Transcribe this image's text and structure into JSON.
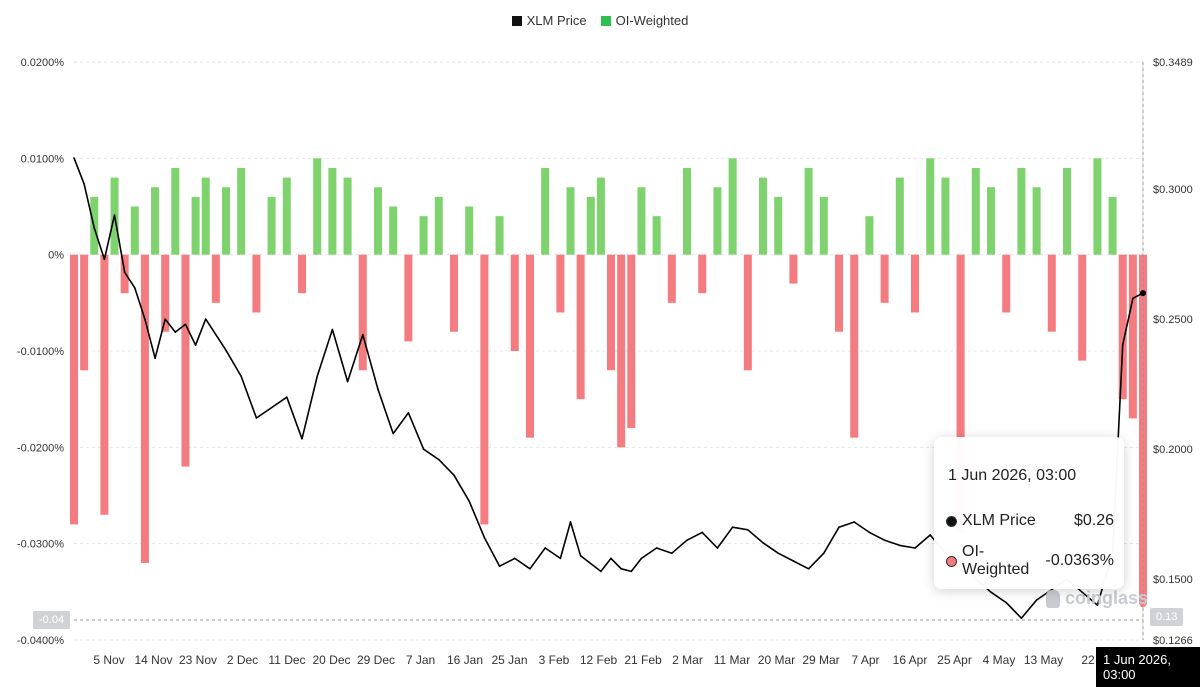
{
  "legend": [
    {
      "label": "XLM Price",
      "color": "#111111"
    },
    {
      "label": "OI-Weighted",
      "color": "#2fbf4f"
    }
  ],
  "colors": {
    "positive": "#7fd36f",
    "negative": "#f47c80",
    "price": "#000000",
    "grid": "#e6e6e6"
  },
  "chart_data": {
    "type": "bar",
    "left_axis": {
      "label": "OI-Weighted",
      "range": [
        -0.04,
        0.02
      ],
      "ticks": [
        {
          "v": 0.02,
          "t": "0.0200%"
        },
        {
          "v": 0.01,
          "t": "0.0100%"
        },
        {
          "v": 0,
          "t": "0%"
        },
        {
          "v": -0.01,
          "t": "-0.0100%"
        },
        {
          "v": -0.02,
          "t": "-0.0200%"
        },
        {
          "v": -0.03,
          "t": "-0.0300%"
        },
        {
          "v": -0.04,
          "t": "-0.0400%"
        }
      ]
    },
    "right_axis": {
      "label": "XLM Price",
      "range": [
        0.1266,
        0.3489
      ],
      "ticks": [
        {
          "v": 0.3489,
          "t": "$0.3489"
        },
        {
          "v": 0.3,
          "t": "$0.3000"
        },
        {
          "v": 0.25,
          "t": "$0.2500"
        },
        {
          "v": 0.2,
          "t": "$0.2000"
        },
        {
          "v": 0.15,
          "t": "$0.1500"
        },
        {
          "v": 0.1266,
          "t": "$0.1266"
        }
      ]
    },
    "x_ticks": [
      "5 Nov",
      "14 Nov",
      "23 Nov",
      "2 Dec",
      "11 Dec",
      "20 Dec",
      "29 Dec",
      "7 Jan",
      "16 Jan",
      "25 Jan",
      "3 Feb",
      "12 Feb",
      "21 Feb",
      "2 Mar",
      "11 Mar",
      "20 Mar",
      "29 Mar",
      "7 Apr",
      "16 Apr",
      "25 Apr",
      "4 May",
      "13 May",
      "22"
    ],
    "x_range_days": [
      0,
      211
    ],
    "price_series": {
      "name": "XLM Price",
      "days": [
        0,
        2,
        4,
        6,
        8,
        10,
        12,
        14,
        16,
        18,
        20,
        22,
        24,
        26,
        28,
        30,
        33,
        36,
        39,
        42,
        45,
        48,
        51,
        54,
        57,
        60,
        63,
        66,
        69,
        72,
        75,
        78,
        81,
        84,
        87,
        90,
        93,
        96,
        98,
        100,
        102,
        104,
        106,
        108,
        110,
        112,
        115,
        118,
        121,
        124,
        127,
        130,
        133,
        136,
        139,
        142,
        145,
        148,
        151,
        154,
        157,
        160,
        163,
        166,
        169,
        172,
        175,
        178,
        181,
        184,
        187,
        190,
        193,
        196,
        199,
        202,
        205,
        207,
        209,
        211
      ],
      "values": [
        0.312,
        0.302,
        0.285,
        0.273,
        0.29,
        0.268,
        0.262,
        0.25,
        0.235,
        0.25,
        0.245,
        0.248,
        0.24,
        0.25,
        0.244,
        0.238,
        0.228,
        0.212,
        0.216,
        0.22,
        0.204,
        0.228,
        0.246,
        0.226,
        0.244,
        0.223,
        0.206,
        0.214,
        0.2,
        0.196,
        0.19,
        0.18,
        0.166,
        0.155,
        0.158,
        0.154,
        0.162,
        0.158,
        0.172,
        0.159,
        0.156,
        0.153,
        0.158,
        0.154,
        0.153,
        0.158,
        0.162,
        0.16,
        0.165,
        0.168,
        0.162,
        0.17,
        0.169,
        0.164,
        0.16,
        0.157,
        0.154,
        0.16,
        0.17,
        0.172,
        0.168,
        0.165,
        0.163,
        0.162,
        0.167,
        0.16,
        0.158,
        0.15,
        0.145,
        0.141,
        0.135,
        0.142,
        0.146,
        0.15,
        0.145,
        0.14,
        0.16,
        0.24,
        0.258,
        0.26
      ]
    },
    "oi_series": {
      "name": "OI-Weighted",
      "days": [
        0,
        2,
        4,
        6,
        8,
        10,
        12,
        14,
        16,
        18,
        20,
        22,
        24,
        26,
        28,
        30,
        33,
        36,
        39,
        42,
        45,
        48,
        51,
        54,
        57,
        60,
        63,
        66,
        69,
        72,
        75,
        78,
        81,
        84,
        87,
        90,
        93,
        96,
        98,
        100,
        102,
        104,
        106,
        108,
        110,
        112,
        115,
        118,
        121,
        124,
        127,
        130,
        133,
        136,
        139,
        142,
        145,
        148,
        151,
        154,
        157,
        160,
        163,
        166,
        169,
        172,
        175,
        178,
        181,
        184,
        187,
        190,
        193,
        196,
        199,
        202,
        205,
        207,
        209,
        211
      ],
      "values": [
        -0.028,
        -0.012,
        0.006,
        -0.027,
        0.008,
        -0.004,
        0.005,
        -0.032,
        0.007,
        -0.008,
        0.009,
        -0.022,
        0.006,
        0.008,
        -0.005,
        0.007,
        0.009,
        -0.006,
        0.006,
        0.008,
        -0.004,
        0.01,
        0.009,
        0.008,
        -0.012,
        0.007,
        0.005,
        -0.009,
        0.004,
        0.006,
        -0.008,
        0.005,
        -0.028,
        0.004,
        -0.01,
        -0.019,
        0.009,
        -0.006,
        0.007,
        -0.015,
        0.006,
        0.008,
        -0.012,
        -0.02,
        -0.018,
        0.007,
        0.004,
        -0.005,
        0.009,
        -0.004,
        0.007,
        0.01,
        -0.012,
        0.008,
        0.006,
        -0.003,
        0.009,
        0.006,
        -0.008,
        -0.019,
        0.004,
        -0.005,
        0.008,
        -0.006,
        0.01,
        0.008,
        -0.029,
        0.009,
        0.007,
        -0.006,
        0.009,
        0.007,
        -0.008,
        0.009,
        -0.011,
        0.01,
        0.006,
        -0.015,
        -0.017,
        -0.0363
      ]
    }
  },
  "tooltip": {
    "title": "1 Jun 2026, 03:00",
    "rows": [
      {
        "label": "XLM Price",
        "value": "$0.26",
        "dot": "#111111"
      },
      {
        "label": "OI-Weighted",
        "value": "-0.0363%",
        "dot": "#f47c80"
      }
    ]
  },
  "crosshair": {
    "left_value": "-0.04",
    "right_value": "0.13",
    "date": "1 Jun 2026, 03:00"
  },
  "watermark": "coinglass"
}
